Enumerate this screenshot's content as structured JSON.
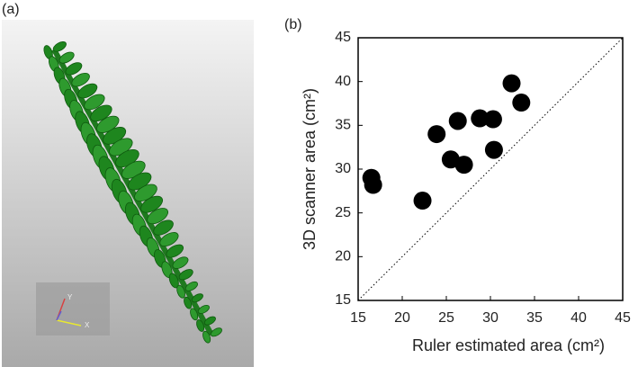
{
  "panel_a": {
    "label": "(a)",
    "axis_x": "X",
    "axis_y": "Y"
  },
  "chart_data": {
    "type": "scatter",
    "panel_label": "(b)",
    "x_label": "Ruler estimated area (cm²)",
    "y_label": "3D scanner area (cm²)",
    "x": [
      16.5,
      16.7,
      22.3,
      23.9,
      25.5,
      26.3,
      27.0,
      28.8,
      30.3,
      30.4,
      32.4,
      33.5
    ],
    "values": [
      29.0,
      28.2,
      26.4,
      34.0,
      31.1,
      35.5,
      30.5,
      35.8,
      35.7,
      32.2,
      39.8,
      37.6
    ],
    "color": "#000000",
    "xlim": [
      15,
      45
    ],
    "ylim": [
      15,
      45
    ],
    "xticks": [
      15,
      20,
      25,
      30,
      35,
      40,
      45
    ],
    "yticks": [
      15,
      20,
      25,
      30,
      35,
      40,
      45
    ],
    "identity_line": true
  }
}
